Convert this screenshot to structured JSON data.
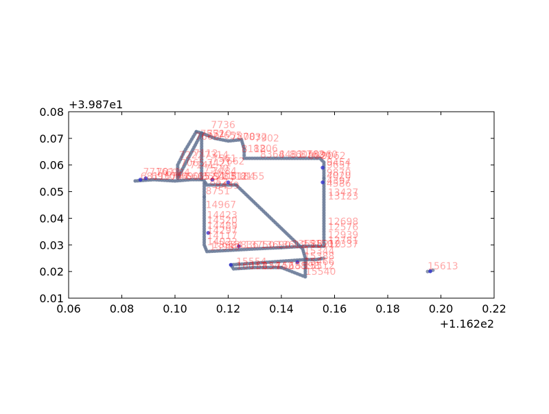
{
  "chart_data": {
    "type": "scatter",
    "title": "",
    "xlabel": "",
    "ylabel": "",
    "xlim": [
      0.06,
      0.22
    ],
    "ylim": [
      0.01,
      0.08
    ],
    "x_offset_label": "+1.162e2",
    "y_offset_label": "+3.987e1",
    "x_ticks": [
      "0.06",
      "0.08",
      "0.10",
      "0.12",
      "0.14",
      "0.16",
      "0.18",
      "0.20",
      "0.22"
    ],
    "y_ticks": [
      "0.01",
      "0.02",
      "0.03",
      "0.04",
      "0.05",
      "0.06",
      "0.07",
      "0.08"
    ],
    "x_tick_values": [
      0.06,
      0.08,
      0.1,
      0.12,
      0.14,
      0.16,
      0.18,
      0.2,
      0.22
    ],
    "y_tick_values": [
      0.01,
      0.02,
      0.03,
      0.04,
      0.05,
      0.06,
      0.07,
      0.08
    ],
    "grid": false,
    "legend": "none",
    "marker_color": "#5a6b8c",
    "label_color": "#ff0000",
    "path": [
      [
        0.085,
        0.054
      ],
      [
        0.092,
        0.0545
      ],
      [
        0.1,
        0.054
      ],
      [
        0.106,
        0.0545
      ],
      [
        0.11,
        0.0545
      ],
      [
        0.11,
        0.061
      ],
      [
        0.11,
        0.067
      ],
      [
        0.11,
        0.072
      ],
      [
        0.108,
        0.0725
      ],
      [
        0.1035,
        0.065
      ],
      [
        0.101,
        0.06
      ],
      [
        0.101,
        0.055
      ],
      [
        0.11,
        0.072
      ],
      [
        0.115,
        0.07
      ],
      [
        0.12,
        0.069
      ],
      [
        0.125,
        0.0695
      ],
      [
        0.126,
        0.066
      ],
      [
        0.126,
        0.0625
      ],
      [
        0.135,
        0.0625
      ],
      [
        0.145,
        0.0625
      ],
      [
        0.1545,
        0.0625
      ],
      [
        0.156,
        0.061
      ],
      [
        0.156,
        0.055
      ],
      [
        0.156,
        0.048
      ],
      [
        0.156,
        0.041
      ],
      [
        0.156,
        0.035
      ],
      [
        0.156,
        0.0295
      ],
      [
        0.149,
        0.0295
      ],
      [
        0.14,
        0.029
      ],
      [
        0.13,
        0.0285
      ],
      [
        0.121,
        0.028
      ],
      [
        0.112,
        0.0275
      ],
      [
        0.111,
        0.03
      ],
      [
        0.111,
        0.04
      ],
      [
        0.111,
        0.048
      ],
      [
        0.111,
        0.054
      ],
      [
        0.112,
        0.0525
      ],
      [
        0.121,
        0.0525
      ],
      [
        0.123,
        0.0525
      ],
      [
        0.148,
        0.0285
      ],
      [
        0.149,
        0.025
      ],
      [
        0.149,
        0.021
      ],
      [
        0.149,
        0.018
      ],
      [
        0.14,
        0.0215
      ],
      [
        0.13,
        0.0215
      ],
      [
        0.122,
        0.021
      ],
      [
        0.121,
        0.0225
      ],
      [
        0.149,
        0.0245
      ],
      [
        0.153,
        0.0245
      ],
      [
        0.156,
        0.025
      ]
    ],
    "segments": [
      [
        0,
        4
      ],
      [
        4,
        8
      ],
      [
        8,
        12
      ],
      [
        12,
        22
      ],
      [
        22,
        28
      ],
      [
        28,
        34
      ],
      [
        34,
        38
      ],
      [
        38,
        43
      ],
      [
        43,
        47
      ],
      [
        47,
        50
      ]
    ],
    "isolated_points": [
      [
        0.195,
        0.02
      ],
      [
        0.196,
        0.0202
      ],
      [
        0.197,
        0.0205
      ]
    ],
    "blue_points": [
      [
        0.087,
        0.0545
      ],
      [
        0.089,
        0.055
      ],
      [
        0.114,
        0.0545
      ],
      [
        0.12,
        0.0535
      ],
      [
        0.1555,
        0.059
      ],
      [
        0.1555,
        0.0535
      ],
      [
        0.1125,
        0.0345
      ],
      [
        0.124,
        0.0295
      ],
      [
        0.146,
        0.0235
      ],
      [
        0.121,
        0.0225
      ],
      [
        0.196,
        0.0201
      ]
    ],
    "labels": [
      {
        "x": 0.1135,
        "y": 0.0738,
        "text": "7736"
      },
      {
        "x": 0.1095,
        "y": 0.0705,
        "text": "7552"
      },
      {
        "x": 0.1075,
        "y": 0.0695,
        "text": "7600"
      },
      {
        "x": 0.112,
        "y": 0.0705,
        "text": "7710"
      },
      {
        "x": 0.116,
        "y": 0.0698,
        "text": "7655"
      },
      {
        "x": 0.121,
        "y": 0.0695,
        "text": "7800"
      },
      {
        "x": 0.1255,
        "y": 0.0693,
        "text": "7832"
      },
      {
        "x": 0.13,
        "y": 0.0688,
        "text": "7902"
      },
      {
        "x": 0.125,
        "y": 0.0648,
        "text": "8118"
      },
      {
        "x": 0.1295,
        "y": 0.065,
        "text": "8206"
      },
      {
        "x": 0.132,
        "y": 0.0628,
        "text": "8364"
      },
      {
        "x": 0.139,
        "y": 0.0628,
        "text": "8481"
      },
      {
        "x": 0.143,
        "y": 0.0628,
        "text": "8605"
      },
      {
        "x": 0.147,
        "y": 0.0628,
        "text": "8762"
      },
      {
        "x": 0.15,
        "y": 0.0622,
        "text": "8921"
      },
      {
        "x": 0.152,
        "y": 0.0628,
        "text": "8960"
      },
      {
        "x": 0.155,
        "y": 0.0622,
        "text": "9062"
      },
      {
        "x": 0.157,
        "y": 0.0598,
        "text": "9454"
      },
      {
        "x": 0.157,
        "y": 0.0588,
        "text": "9651"
      },
      {
        "x": 0.157,
        "y": 0.056,
        "text": "9870"
      },
      {
        "x": 0.157,
        "y": 0.0548,
        "text": "4020"
      },
      {
        "x": 0.157,
        "y": 0.0528,
        "text": "4397"
      },
      {
        "x": 0.157,
        "y": 0.0518,
        "text": "4586"
      },
      {
        "x": 0.1575,
        "y": 0.0485,
        "text": "13427"
      },
      {
        "x": 0.1575,
        "y": 0.047,
        "text": "13123"
      },
      {
        "x": 0.1575,
        "y": 0.0375,
        "text": "12698"
      },
      {
        "x": 0.1575,
        "y": 0.0355,
        "text": "12576"
      },
      {
        "x": 0.1575,
        "y": 0.0325,
        "text": "12939"
      },
      {
        "x": 0.1575,
        "y": 0.0305,
        "text": "12781"
      },
      {
        "x": 0.1575,
        "y": 0.029,
        "text": "12337"
      },
      {
        "x": 0.1015,
        "y": 0.0625,
        "text": "7222"
      },
      {
        "x": 0.107,
        "y": 0.0632,
        "text": "7112"
      },
      {
        "x": 0.111,
        "y": 0.0625,
        "text": "7314"
      },
      {
        "x": 0.102,
        "y": 0.0595,
        "text": "7065"
      },
      {
        "x": 0.1055,
        "y": 0.0588,
        "text": "7141"
      },
      {
        "x": 0.112,
        "y": 0.0595,
        "text": "7421"
      },
      {
        "x": 0.114,
        "y": 0.0612,
        "text": "7561"
      },
      {
        "x": 0.117,
        "y": 0.0602,
        "text": "7662"
      },
      {
        "x": 0.111,
        "y": 0.0575,
        "text": "7520"
      },
      {
        "x": 0.114,
        "y": 0.0565,
        "text": "7484"
      },
      {
        "x": 0.088,
        "y": 0.0562,
        "text": "7716"
      },
      {
        "x": 0.093,
        "y": 0.0562,
        "text": "7011"
      },
      {
        "x": 0.0965,
        "y": 0.056,
        "text": "6984"
      },
      {
        "x": 0.087,
        "y": 0.0545,
        "text": "6811"
      },
      {
        "x": 0.091,
        "y": 0.0545,
        "text": "6930"
      },
      {
        "x": 0.096,
        "y": 0.0545,
        "text": "6744"
      },
      {
        "x": 0.1,
        "y": 0.0545,
        "text": "6690"
      },
      {
        "x": 0.104,
        "y": 0.0545,
        "text": "6615"
      },
      {
        "x": 0.1085,
        "y": 0.0545,
        "text": "6522"
      },
      {
        "x": 0.11,
        "y": 0.0545,
        "text": "8591"
      },
      {
        "x": 0.114,
        "y": 0.0545,
        "text": "8405"
      },
      {
        "x": 0.118,
        "y": 0.0545,
        "text": "8312"
      },
      {
        "x": 0.121,
        "y": 0.0545,
        "text": "8184"
      },
      {
        "x": 0.1245,
        "y": 0.0545,
        "text": "8155"
      },
      {
        "x": 0.113,
        "y": 0.0525,
        "text": "8522"
      },
      {
        "x": 0.115,
        "y": 0.051,
        "text": "8439"
      },
      {
        "x": 0.1115,
        "y": 0.049,
        "text": "8751"
      },
      {
        "x": 0.1115,
        "y": 0.0438,
        "text": "14967"
      },
      {
        "x": 0.112,
        "y": 0.04,
        "text": "14423"
      },
      {
        "x": 0.112,
        "y": 0.038,
        "text": "14520"
      },
      {
        "x": 0.112,
        "y": 0.036,
        "text": "14489"
      },
      {
        "x": 0.112,
        "y": 0.0342,
        "text": "14297"
      },
      {
        "x": 0.112,
        "y": 0.0322,
        "text": "14117"
      },
      {
        "x": 0.112,
        "y": 0.03,
        "text": "14022"
      },
      {
        "x": 0.113,
        "y": 0.028,
        "text": "13989"
      },
      {
        "x": 0.114,
        "y": 0.0288,
        "text": "13924"
      },
      {
        "x": 0.12,
        "y": 0.0288,
        "text": "13836"
      },
      {
        "x": 0.126,
        "y": 0.0288,
        "text": "13750"
      },
      {
        "x": 0.132,
        "y": 0.0288,
        "text": "13690"
      },
      {
        "x": 0.138,
        "y": 0.0288,
        "text": "13612"
      },
      {
        "x": 0.144,
        "y": 0.0292,
        "text": "13588"
      },
      {
        "x": 0.148,
        "y": 0.0292,
        "text": "15150"
      },
      {
        "x": 0.151,
        "y": 0.0292,
        "text": "15210"
      },
      {
        "x": 0.123,
        "y": 0.0225,
        "text": "15554"
      },
      {
        "x": 0.123,
        "y": 0.021,
        "text": "16011"
      },
      {
        "x": 0.128,
        "y": 0.021,
        "text": "15834"
      },
      {
        "x": 0.133,
        "y": 0.021,
        "text": "15742"
      },
      {
        "x": 0.138,
        "y": 0.021,
        "text": "15688"
      },
      {
        "x": 0.143,
        "y": 0.021,
        "text": "15598"
      },
      {
        "x": 0.1485,
        "y": 0.0265,
        "text": "15344"
      },
      {
        "x": 0.1485,
        "y": 0.0245,
        "text": "15388"
      },
      {
        "x": 0.1485,
        "y": 0.0225,
        "text": "15466"
      },
      {
        "x": 0.1485,
        "y": 0.021,
        "text": "15512"
      },
      {
        "x": 0.149,
        "y": 0.0188,
        "text": "15540"
      },
      {
        "x": 0.195,
        "y": 0.0208,
        "text": "15613"
      }
    ]
  }
}
